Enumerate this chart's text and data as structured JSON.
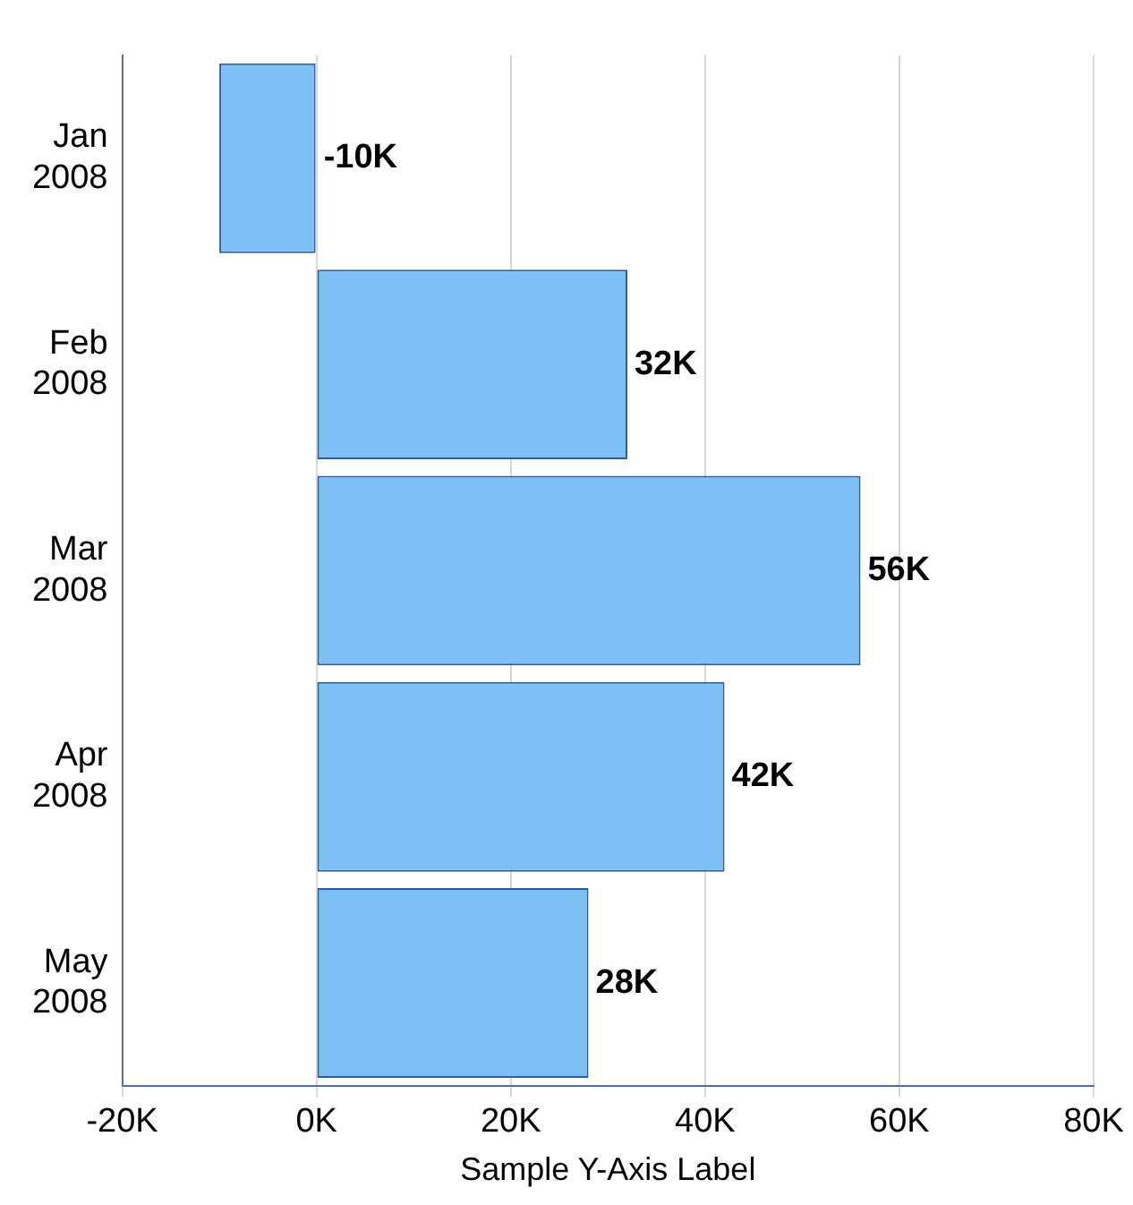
{
  "chart_data": {
    "type": "bar",
    "orientation": "horizontal",
    "xlabel": "Sample Y-Axis Label",
    "categories": [
      "Jan 2008",
      "Feb 2008",
      "Mar 2008",
      "Apr 2008",
      "May 2008"
    ],
    "values": [
      -10000,
      32000,
      56000,
      42000,
      28000
    ],
    "value_labels": [
      "-10K",
      "32K",
      "56K",
      "42K",
      "28K"
    ],
    "color": "#7cc0f4",
    "xlim": [
      -20000,
      80000
    ],
    "xticks": [
      {
        "value": -20000,
        "label": "-20K"
      },
      {
        "value": 0,
        "label": "0K"
      },
      {
        "value": 20000,
        "label": "20K"
      },
      {
        "value": 40000,
        "label": "40K"
      },
      {
        "value": 60000,
        "label": "60K"
      },
      {
        "value": 80000,
        "label": "80K"
      }
    ],
    "grid": "x",
    "legend": false
  }
}
